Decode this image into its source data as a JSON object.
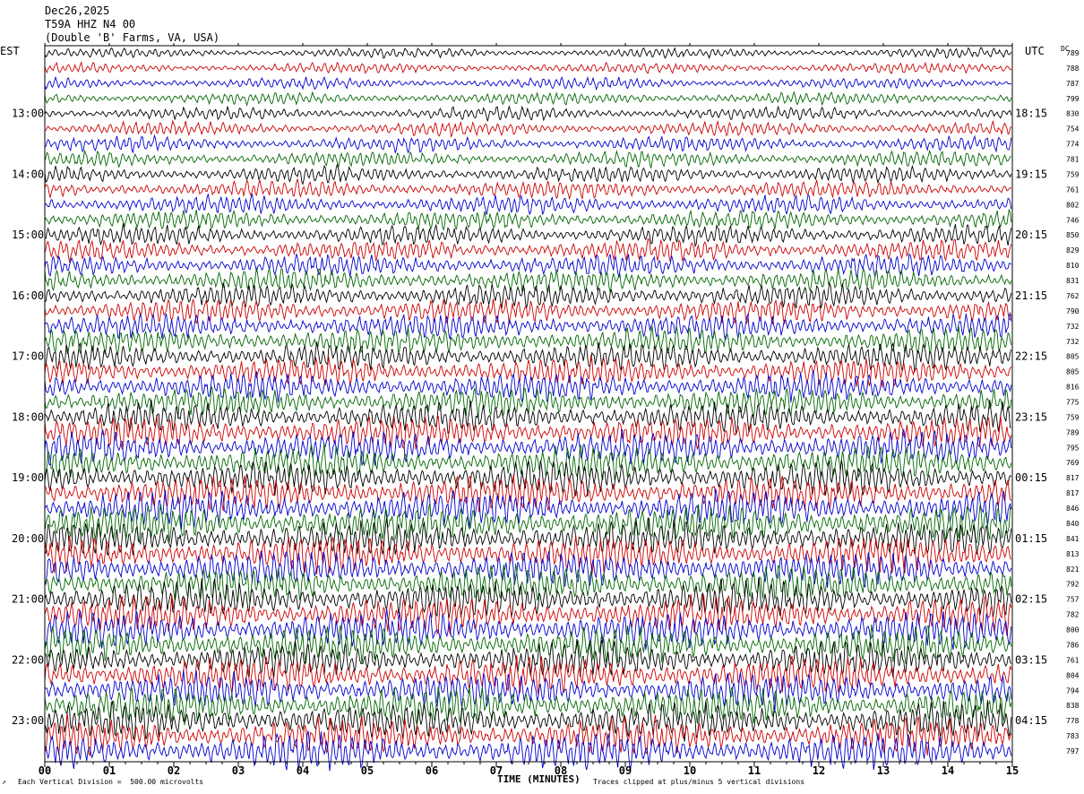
{
  "header": {
    "date": "Dec26,2025",
    "station": "T59A HHZ N4 00",
    "location": "(Double 'B' Farms, VA, USA)"
  },
  "footer": {
    "scale_note": "Each Vertical Division =  500.00 microvolts",
    "xlabel": "TIME (MINUTES)",
    "clip_note": "Traces clipped at plus/minus 5 vertical divisions"
  },
  "colors": {
    "black": "#000000",
    "red": "#cc0000",
    "blue": "#0000cc",
    "green": "#006600"
  },
  "chart_data": {
    "type": "line",
    "title": "",
    "xlabel": "TIME (MINUTES)",
    "left_axis_label": "EST",
    "right_axis_label": "UTC",
    "dc_label": "DC",
    "x_range": [
      0,
      15
    ],
    "x_ticks": [
      "00",
      "01",
      "02",
      "03",
      "04",
      "05",
      "06",
      "07",
      "08",
      "09",
      "10",
      "11",
      "12",
      "13",
      "14",
      "15"
    ],
    "left_hour_labels": [
      "13:00",
      "14:00",
      "15:00",
      "16:00",
      "17:00",
      "18:00",
      "19:00",
      "20:00",
      "21:00",
      "22:00",
      "23:00"
    ],
    "right_hour_labels": [
      "18:15",
      "19:15",
      "20:15",
      "21:15",
      "22:15",
      "23:15",
      "00:15",
      "01:15",
      "02:15",
      "03:15",
      "04:15"
    ],
    "trace_color_cycle": [
      "black",
      "red",
      "blue",
      "green"
    ],
    "dc_offsets": [
      789,
      788,
      787,
      799,
      830,
      754,
      774,
      781,
      759,
      761,
      802,
      746,
      850,
      829,
      810,
      831,
      762,
      790,
      732,
      732,
      805,
      805,
      816,
      775,
      759,
      789,
      795,
      769,
      817,
      817,
      846,
      840,
      841,
      813,
      821,
      792,
      757,
      782,
      800,
      786,
      761,
      804,
      794,
      838,
      778,
      783,
      797
    ],
    "amplitude_units": "microvolts",
    "microvolts_per_division": 500.0
  }
}
